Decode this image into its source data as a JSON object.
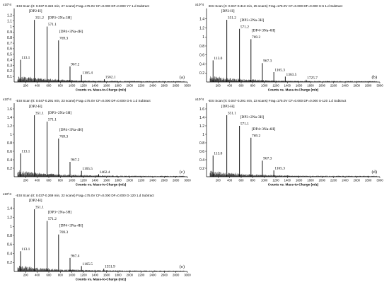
{
  "chart_data": [
    {
      "type": "bar",
      "panel_label": "(a)",
      "header": "-ESI Scan (rt: 0.037-0.324 min, 27 scans) Frag=175.0V CF=0.000 DF=0.000 YY 1.d Subtract",
      "exponent_label": "x10^4",
      "xlabel": "Counts vs. Mass-to-Charge (m/z)",
      "xlim": [
        0,
        3000
      ],
      "ylim": [
        0,
        1.3
      ],
      "x_ticks": [
        200,
        400,
        600,
        800,
        1000,
        1200,
        1400,
        1600,
        1800,
        2000,
        2200,
        2400,
        2600,
        2800,
        3000
      ],
      "y_ticks": [
        0.1,
        0.2,
        0.3,
        0.4,
        0.5,
        0.6,
        0.7,
        0.8,
        0.9,
        1,
        1.1,
        1.2
      ],
      "peaks": [
        {
          "mz": 113.1,
          "intensity": 0.4,
          "label": "113.1"
        },
        {
          "mz": 351.2,
          "intensity": 1.12,
          "label": "351.2"
        },
        {
          "mz": 571.1,
          "intensity": 1.0,
          "label": "571.1"
        },
        {
          "mz": 769.3,
          "intensity": 0.75,
          "label": "769.3"
        },
        {
          "mz": 967.2,
          "intensity": 0.28,
          "label": "967.2"
        },
        {
          "mz": 1165.4,
          "intensity": 0.13,
          "label": "1165.4"
        },
        {
          "mz": 1562.1,
          "intensity": 0.05,
          "label": "1562.1"
        }
      ],
      "annotations": [
        "[DP2-H]",
        "[DP3+2Na-3H]",
        "[DP4+3Na-4H]"
      ]
    },
    {
      "type": "bar",
      "panel_label": "(b)",
      "header": "-ESI Scan (rt: 0.047-0.313 min, 25 scans) Frag=175.0V CF=0.000 DF=0.000 S-6 1.d Subtract",
      "exponent_label": "x10^4",
      "xlabel": "Counts vs. Mass-to-Charge (m/z)",
      "xlim": [
        0,
        3000
      ],
      "ylim": [
        0,
        1.6
      ],
      "x_ticks": [
        200,
        400,
        600,
        800,
        1000,
        1200,
        1400,
        1600,
        1800,
        2000,
        2200,
        2400,
        2600,
        2800,
        3000
      ],
      "y_ticks": [
        0.2,
        0.4,
        0.6,
        0.8,
        1,
        1.2,
        1.4
      ],
      "peaks": [
        {
          "mz": 113.0,
          "intensity": 0.48,
          "label": "113.0"
        },
        {
          "mz": 351.2,
          "intensity": 1.38,
          "label": "351.2"
        },
        {
          "mz": 571.2,
          "intensity": 1.18,
          "label": "571.2"
        },
        {
          "mz": 769.2,
          "intensity": 0.95,
          "label": "769.2"
        },
        {
          "mz": 967.3,
          "intensity": 0.42,
          "label": "967.3"
        },
        {
          "mz": 1165.3,
          "intensity": 0.22,
          "label": "1165.3"
        },
        {
          "mz": 1363.5,
          "intensity": 0.12,
          "label": "1363.5"
        },
        {
          "mz": 1725.7,
          "intensity": 0.05,
          "label": "1725.7"
        }
      ],
      "annotations": [
        "[DP2-H]",
        "[DP3+2Na-3H]",
        "[DP4+3Na-4H]"
      ]
    },
    {
      "type": "bar",
      "panel_label": "(c)",
      "header": "-ESI Scan (rt: 0.047-0.291 min, 23 scans) Frag=175.0V CF=0.000 DF=0.000 G-5 1.d Subtract",
      "exponent_label": "x10^4",
      "xlabel": "Counts vs. Mass-to-Charge (m/z)",
      "xlim": [
        0,
        3000
      ],
      "ylim": [
        0,
        1.7
      ],
      "x_ticks": [
        200,
        400,
        600,
        800,
        1000,
        1200,
        1400,
        1600,
        1800,
        2000,
        2200,
        2400,
        2600,
        2800,
        3000
      ],
      "y_ticks": [
        0.2,
        0.4,
        0.6,
        0.8,
        1,
        1.2,
        1.4,
        1.6
      ],
      "peaks": [
        {
          "mz": 113.1,
          "intensity": 0.55,
          "label": "113.1"
        },
        {
          "mz": 351.1,
          "intensity": 1.45,
          "label": "351.1"
        },
        {
          "mz": 571.1,
          "intensity": 1.3,
          "label": "571.1"
        },
        {
          "mz": 769.3,
          "intensity": 0.9,
          "label": "769.3"
        },
        {
          "mz": 967.2,
          "intensity": 0.35,
          "label": "967.2"
        },
        {
          "mz": 1165.5,
          "intensity": 0.14,
          "label": "1165.5"
        },
        {
          "mz": 1462.4,
          "intensity": 0.06,
          "label": "1462.4"
        }
      ],
      "annotations": [
        "[DP2-H]",
        "[DP3+2Na-3H]",
        "[DP4+3Na-4H]"
      ]
    },
    {
      "type": "bar",
      "panel_label": "(d)",
      "header": "-ESI Scan (rt: 0.047-0.291 min, 23 scans) Frag=175.0V CF=0.000 DF=0.000 S-120 1.d Subtract",
      "exponent_label": "x10^4",
      "xlabel": "Counts vs. Mass-to-Charge (m/z)",
      "xlim": [
        0,
        3000
      ],
      "ylim": [
        0,
        1.7
      ],
      "x_ticks": [
        200,
        400,
        600,
        800,
        1000,
        1200,
        1400,
        1600,
        1800,
        2000,
        2200,
        2400,
        2600,
        2800,
        3000
      ],
      "y_ticks": [
        0.2,
        0.4,
        0.6,
        0.8,
        1,
        1.2,
        1.4,
        1.6
      ],
      "peaks": [
        {
          "mz": 113.0,
          "intensity": 0.5,
          "label": "113.0"
        },
        {
          "mz": 351.1,
          "intensity": 1.45,
          "label": "351.1"
        },
        {
          "mz": 571.1,
          "intensity": 1.2,
          "label": "571.1"
        },
        {
          "mz": 769.2,
          "intensity": 0.92,
          "label": "769.2"
        },
        {
          "mz": 967.3,
          "intensity": 0.38,
          "label": "967.3"
        },
        {
          "mz": 1165.3,
          "intensity": 0.15,
          "label": "1165.3"
        }
      ],
      "annotations": [
        "[DP2-H]",
        "[DP3+2Na-3H]",
        "[DP4+3Na-4H]"
      ]
    },
    {
      "type": "bar",
      "panel_label": "(e)",
      "header": "-ESI Scan (rt: 0.037-0.269 min, 22 scans) Frag=175.0V CF=0.000 DF=0.000 G-120 1.d Subtract",
      "exponent_label": "x10^4",
      "xlabel": "Counts vs. Mass-to-Charge (m/z)",
      "xlim": [
        0,
        3000
      ],
      "ylim": [
        0,
        1.6
      ],
      "x_ticks": [
        200,
        400,
        600,
        800,
        1000,
        1200,
        1400,
        1600,
        1800,
        2000,
        2200,
        2400,
        2600,
        2800,
        3000
      ],
      "y_ticks": [
        0.2,
        0.4,
        0.6,
        0.8,
        1,
        1.2,
        1.4
      ],
      "peaks": [
        {
          "mz": 113.1,
          "intensity": 0.45,
          "label": "113.1"
        },
        {
          "mz": 351.1,
          "intensity": 1.38,
          "label": "351.1"
        },
        {
          "mz": 571.2,
          "intensity": 1.12,
          "label": "571.2"
        },
        {
          "mz": 769.3,
          "intensity": 0.82,
          "label": "769.3"
        },
        {
          "mz": 967.4,
          "intensity": 0.3,
          "label": "967.4"
        },
        {
          "mz": 1165.5,
          "intensity": 0.12,
          "label": "1165.5"
        },
        {
          "mz": 1551.9,
          "intensity": 0.06,
          "label": "1551.9"
        }
      ],
      "annotations": [
        "[DP2-H]",
        "[DP3+2Na-3H]",
        "[DP4+3Na-4H]"
      ]
    }
  ]
}
